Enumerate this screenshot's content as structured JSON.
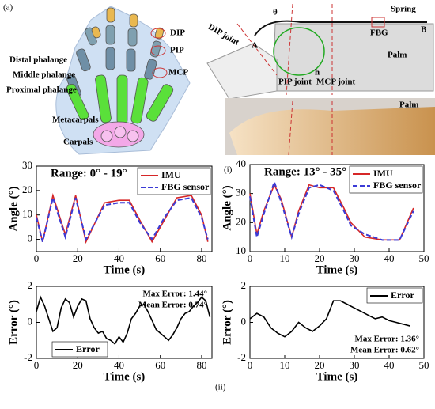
{
  "figure": {
    "panel_a": "(a)",
    "panel_i": "(i)",
    "panel_ii": "(ii)",
    "hand_labels": [
      "DIP",
      "PIP",
      "MCP",
      "Distal phalange",
      "Middle phalange",
      "Proximal phalange",
      "Metacarpals",
      "Carpals"
    ],
    "schematic_labels": [
      "θ",
      "Spring",
      "FBG",
      "B",
      "A",
      "DIP joint",
      "h",
      "Palm",
      "PIP joint",
      "MCP joint"
    ],
    "photo_label": "Palm"
  },
  "chart_data": [
    {
      "type": "line",
      "title": "Range: 0° - 19°",
      "xlabel": "Time (s)",
      "ylabel": "Angle (°)",
      "x": [
        0,
        3,
        8,
        14,
        19,
        24,
        33,
        40,
        45,
        50,
        56,
        62,
        68,
        75,
        80,
        83
      ],
      "series": [
        {
          "name": "IMU",
          "color": "#d62728",
          "dash": false,
          "values": [
            10,
            -1,
            18,
            2,
            18,
            -1,
            15,
            16,
            16,
            8,
            -1,
            8,
            17,
            18,
            10,
            -1
          ]
        },
        {
          "name": "FBG sensor",
          "color": "#3b3bd6",
          "dash": true,
          "values": [
            9,
            -1,
            17,
            1,
            17,
            0,
            14,
            15,
            15,
            7,
            0,
            9,
            16,
            17,
            9,
            0
          ]
        }
      ],
      "xlim": [
        0,
        85
      ],
      "xticks": [
        0,
        20,
        40,
        60,
        80
      ],
      "ylim": [
        -5,
        30
      ],
      "yticks": [
        0,
        10,
        20,
        30
      ],
      "legend": "upper right",
      "grid": false
    },
    {
      "type": "line",
      "title": "Range: 13° - 35°",
      "xlabel": "Time (s)",
      "ylabel": "Angle (°)",
      "x": [
        0,
        2,
        4,
        7,
        9,
        12,
        14,
        17,
        20,
        24,
        27,
        29,
        33,
        38,
        43,
        47
      ],
      "series": [
        {
          "name": "IMU",
          "color": "#d62728",
          "dash": false,
          "values": [
            30,
            16,
            24,
            33,
            28,
            15,
            24,
            33,
            32,
            32,
            25,
            20,
            15,
            14,
            14,
            25
          ]
        },
        {
          "name": "FBG sensor",
          "color": "#3b3bd6",
          "dash": true,
          "values": [
            29,
            15,
            23,
            34,
            27,
            15,
            23,
            32,
            33,
            31,
            24,
            19,
            16,
            14,
            14,
            24
          ]
        }
      ],
      "xlim": [
        0,
        50
      ],
      "xticks": [
        0,
        10,
        20,
        30,
        40,
        50
      ],
      "ylim": [
        10,
        40
      ],
      "yticks": [
        10,
        20,
        30,
        40
      ],
      "legend": "upper right",
      "grid": false
    },
    {
      "type": "line",
      "xlabel": "Time (s)",
      "ylabel": "Error (°)",
      "x": [
        0,
        2,
        4,
        6,
        8,
        10,
        12,
        14,
        16,
        18,
        20,
        22,
        24,
        26,
        28,
        30,
        32,
        34,
        36,
        38,
        40,
        42,
        44,
        46,
        48,
        50,
        52,
        54,
        56,
        58,
        60,
        62,
        64,
        66,
        68,
        70,
        72,
        74,
        76,
        78,
        80,
        82,
        84
      ],
      "series": [
        {
          "name": "Error",
          "color": "#000000",
          "dash": false,
          "values": [
            0.6,
            1.4,
            0.9,
            0.2,
            -0.5,
            -0.3,
            0.8,
            1.3,
            1.1,
            0.3,
            0.9,
            1.3,
            1.2,
            0.2,
            -0.3,
            -0.6,
            -0.5,
            -0.9,
            -1.0,
            -1.2,
            -0.8,
            -1.1,
            -0.6,
            0.2,
            0.5,
            0.9,
            1.0,
            0.6,
            0.1,
            -0.4,
            -0.6,
            -0.8,
            -1.0,
            -0.7,
            -0.3,
            0.2,
            0.5,
            0.6,
            0.9,
            1.1,
            1.4,
            1.2,
            0.3
          ]
        }
      ],
      "annotations": [
        "Max Error: 1.44°",
        "Mean Error: 0.74°"
      ],
      "annotation_corner": "upper right",
      "xlim": [
        0,
        85
      ],
      "xticks": [
        0,
        20,
        40,
        60,
        80
      ],
      "ylim": [
        -2,
        2
      ],
      "yticks": [
        -2,
        0,
        2
      ],
      "legend": "lower left",
      "grid": false
    },
    {
      "type": "line",
      "xlabel": "Time (s)",
      "ylabel": "Error (°)",
      "x": [
        0,
        2,
        4,
        6,
        8,
        10,
        12,
        14,
        16,
        18,
        20,
        22,
        24,
        26,
        28,
        30,
        32,
        34,
        36,
        38,
        40,
        42,
        44,
        46
      ],
      "series": [
        {
          "name": "Error",
          "color": "#000000",
          "dash": false,
          "values": [
            0.2,
            0.5,
            0.3,
            -0.3,
            -0.6,
            -0.8,
            -0.5,
            0.0,
            -0.3,
            -0.5,
            -0.2,
            0.2,
            1.2,
            1.2,
            1.0,
            0.8,
            0.6,
            0.4,
            0.2,
            0.3,
            0.1,
            0.0,
            -0.1,
            -0.2
          ]
        }
      ],
      "annotations": [
        "Max Error: 1.36°",
        "Mean Error: 0.62°"
      ],
      "annotation_corner": "lower right",
      "xlim": [
        0,
        50
      ],
      "xticks": [
        0,
        10,
        20,
        30,
        40,
        50
      ],
      "ylim": [
        -2,
        2
      ],
      "yticks": [
        -2,
        0,
        2
      ],
      "legend": "upper right",
      "grid": false
    }
  ]
}
